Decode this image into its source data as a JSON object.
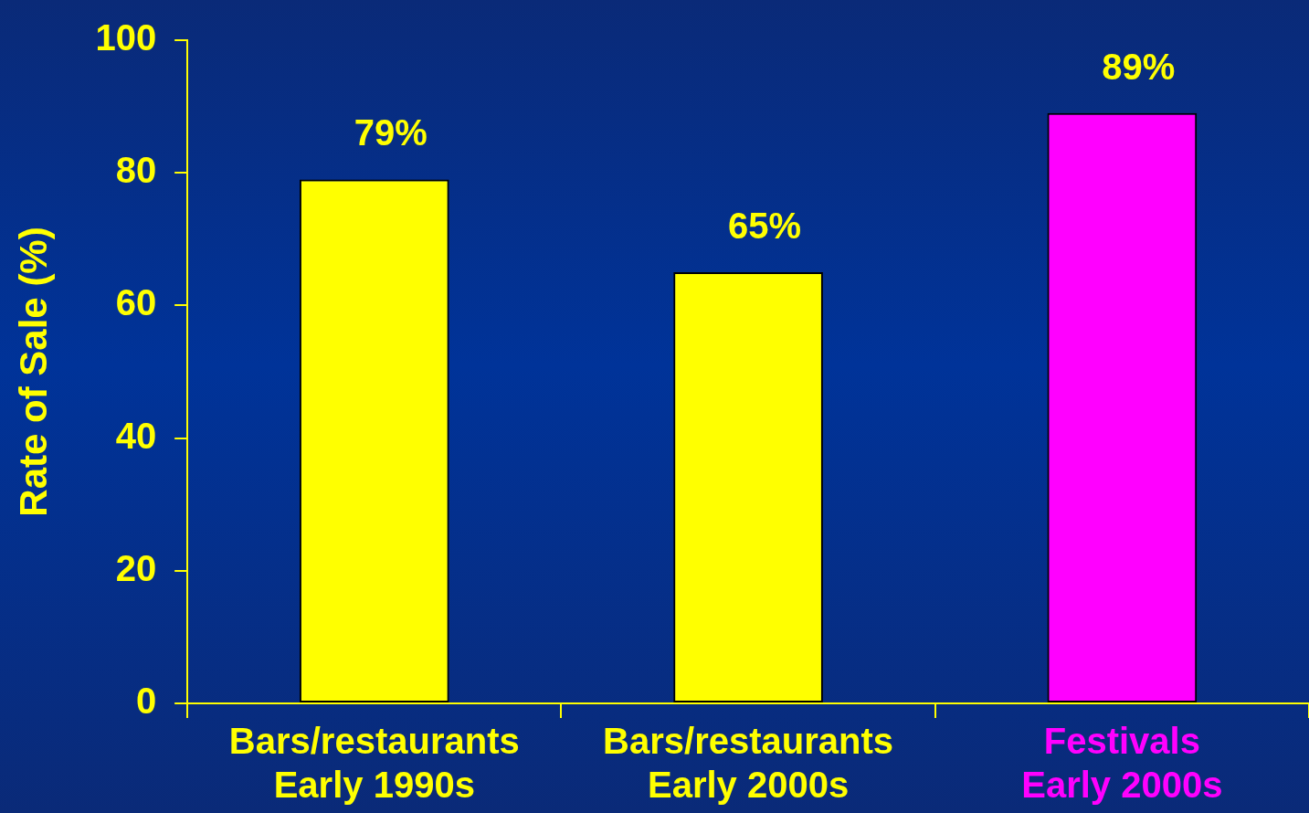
{
  "chart_data": {
    "type": "bar",
    "ylabel": "Rate of Sale (%)",
    "categories": [
      "Bars/restaurants\nEarly 1990s",
      "Bars/restaurants\nEarly 2000s",
      "Festivals\nEarly 2000s"
    ],
    "values": [
      79,
      65,
      89
    ],
    "colors": [
      "#ffff00",
      "#ffff00",
      "#ff00ff"
    ],
    "value_labels": [
      "79%",
      "65%",
      "89%"
    ],
    "ylim": [
      0,
      100
    ],
    "yticks": [
      0,
      20,
      40,
      60,
      80,
      100
    ],
    "grid": false,
    "legend": false
  }
}
